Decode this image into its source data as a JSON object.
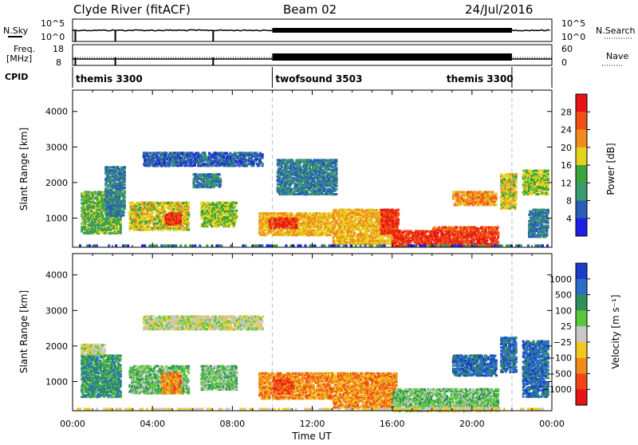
{
  "header": {
    "station": "Clyde River (fitACF)",
    "beam": "Beam 02",
    "date": "24/Jul/2016"
  },
  "noise_panel": {
    "left_label": "N.Sky",
    "right_label": "N.Search",
    "y_top": "10^5",
    "y_bottom": "10^0",
    "right_top": "10^5",
    "right_bottom": "10^0"
  },
  "freq_panel": {
    "left_label_1": "Freq.",
    "left_label_2": "[MHz]",
    "right_label": "Nave",
    "y_top": "18",
    "y_bottom": "8",
    "right_top": "60",
    "right_bottom": "0"
  },
  "cpid_panel": {
    "label": "CPID",
    "segments": [
      {
        "name": "themis 3300",
        "start_h": 0,
        "end_h": 10
      },
      {
        "name": "twofsound 3503",
        "start_h": 10,
        "end_h": 22
      },
      {
        "name": "themis 3300",
        "start_h": 22,
        "end_h": 24
      }
    ]
  },
  "colors": {
    "power": [
      "#1e1ee6",
      "#2a5db8",
      "#3b9a6a",
      "#3aa53a",
      "#e6d21e",
      "#f08c1e",
      "#f05014",
      "#e61414"
    ],
    "velocity": [
      "#1a3cc8",
      "#2a6ec8",
      "#2f8f5a",
      "#5ac83c",
      "#c8c8c8",
      "#f0c81e",
      "#f08c1e",
      "#f04614",
      "#e61414"
    ]
  },
  "chart_data": [
    {
      "type": "heatmap",
      "name": "power",
      "ylabel": "Slant Range [km]",
      "xlabel": "",
      "xlim": [
        0,
        24
      ],
      "ylim": [
        180,
        4600
      ],
      "y_ticks": [
        "1000",
        "2000",
        "3000",
        "4000"
      ],
      "x_ticks": [
        "00:00",
        "04:00",
        "08:00",
        "12:00",
        "16:00",
        "20:00",
        "00:00"
      ],
      "colorbar": {
        "label": "Power [dB]",
        "ticks": [
          "4",
          "8",
          "12",
          "16",
          "20",
          "24",
          "28"
        ],
        "range": [
          0,
          32
        ]
      },
      "blobs": [
        {
          "t0": 0.4,
          "t1": 2.4,
          "r0": 600,
          "r1": 1800,
          "v": 14
        },
        {
          "t0": 1.6,
          "t1": 2.6,
          "r0": 1100,
          "r1": 2500,
          "v": 8
        },
        {
          "t0": 2.8,
          "t1": 5.8,
          "r0": 700,
          "r1": 1500,
          "v": 18
        },
        {
          "t0": 4.6,
          "t1": 5.4,
          "r0": 850,
          "r1": 1200,
          "v": 28
        },
        {
          "t0": 3.5,
          "t1": 9.5,
          "r0": 2500,
          "r1": 2900,
          "v": 6
        },
        {
          "t0": 6.4,
          "t1": 8.2,
          "r0": 800,
          "r1": 1500,
          "v": 16
        },
        {
          "t0": 6.0,
          "t1": 7.4,
          "r0": 1900,
          "r1": 2300,
          "v": 8
        },
        {
          "t0": 9.3,
          "t1": 13.0,
          "r0": 550,
          "r1": 1200,
          "v": 20
        },
        {
          "t0": 9.8,
          "t1": 11.2,
          "r0": 750,
          "r1": 1050,
          "v": 28
        },
        {
          "t0": 10.2,
          "t1": 13.2,
          "r0": 1700,
          "r1": 2700,
          "v": 8
        },
        {
          "t0": 13.0,
          "t1": 16.2,
          "r0": 300,
          "r1": 1300,
          "v": 20
        },
        {
          "t0": 15.4,
          "t1": 16.3,
          "r0": 600,
          "r1": 1300,
          "v": 28
        },
        {
          "t0": 16.0,
          "t1": 21.3,
          "r0": 250,
          "r1": 700,
          "v": 28
        },
        {
          "t0": 18.0,
          "t1": 21.3,
          "r0": 700,
          "r1": 800,
          "v": 26
        },
        {
          "t0": 19.0,
          "t1": 21.2,
          "r0": 1400,
          "r1": 1800,
          "v": 22
        },
        {
          "t0": 21.4,
          "t1": 22.2,
          "r0": 1300,
          "r1": 2300,
          "v": 18
        },
        {
          "t0": 22.5,
          "t1": 23.8,
          "r0": 1700,
          "r1": 2400,
          "v": 16
        },
        {
          "t0": 22.8,
          "t1": 23.8,
          "r0": 500,
          "r1": 1300,
          "v": 8
        }
      ]
    },
    {
      "type": "heatmap",
      "name": "velocity",
      "ylabel": "Slant Range [km]",
      "xlabel": "Time UT",
      "xlim": [
        0,
        24
      ],
      "ylim": [
        180,
        4600
      ],
      "y_ticks": [
        "1000",
        "2000",
        "3000",
        "4000"
      ],
      "x_ticks": [
        "00:00",
        "04:00",
        "08:00",
        "12:00",
        "16:00",
        "20:00",
        "00:00"
      ],
      "colorbar": {
        "label": "Velocity [m s⁻¹]",
        "ticks": [
          "1000",
          "500",
          "100",
          "25",
          "−25",
          "−100",
          "−500",
          "−1000"
        ]
      },
      "blobs": [
        {
          "t0": 0.4,
          "t1": 2.4,
          "r0": 600,
          "r1": 1800,
          "v": 2
        },
        {
          "t0": 0.4,
          "t1": 1.6,
          "r0": 1800,
          "r1": 2100,
          "v": 4
        },
        {
          "t0": 2.8,
          "t1": 5.8,
          "r0": 700,
          "r1": 1500,
          "v": 3
        },
        {
          "t0": 4.4,
          "t1": 5.4,
          "r0": 700,
          "r1": 1300,
          "v": 6
        },
        {
          "t0": 3.5,
          "t1": 9.5,
          "r0": 2500,
          "r1": 2900,
          "v": 4
        },
        {
          "t0": 6.4,
          "t1": 8.2,
          "r0": 800,
          "r1": 1500,
          "v": 3
        },
        {
          "t0": 9.3,
          "t1": 13.0,
          "r0": 550,
          "r1": 1300,
          "v": 6
        },
        {
          "t0": 10.0,
          "t1": 11.0,
          "r0": 700,
          "r1": 1100,
          "v": 7
        },
        {
          "t0": 13.0,
          "t1": 16.2,
          "r0": 300,
          "r1": 1300,
          "v": 6
        },
        {
          "t0": 16.0,
          "t1": 21.3,
          "r0": 300,
          "r1": 850,
          "v": 3
        },
        {
          "t0": 16.0,
          "t1": 21.3,
          "r0": 200,
          "r1": 320,
          "v": 4
        },
        {
          "t0": 19.0,
          "t1": 21.2,
          "r0": 1200,
          "r1": 1800,
          "v": 1
        },
        {
          "t0": 21.4,
          "t1": 22.2,
          "r0": 1300,
          "r1": 2300,
          "v": 1
        },
        {
          "t0": 22.5,
          "t1": 23.8,
          "r0": 600,
          "r1": 2200,
          "v": 1
        }
      ]
    }
  ]
}
